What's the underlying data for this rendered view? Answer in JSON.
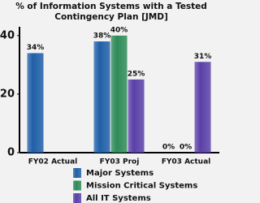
{
  "chart_data": {
    "type": "bar",
    "title": "% of Information Systems with a Tested Contingency Plan [JMD]",
    "categories": [
      "FY02 Actual",
      "FY03 Proj",
      "FY03 Actual"
    ],
    "series": [
      {
        "name": "Major Systems",
        "color": "#1f5fa8",
        "values": [
          34,
          38,
          0
        ],
        "value_labels": [
          "34%",
          "38%",
          "0%"
        ]
      },
      {
        "name": "Mission Critical Systems",
        "color": "#2e8b57",
        "values": [
          null,
          40,
          0
        ],
        "value_labels": [
          null,
          "40%",
          "0%"
        ]
      },
      {
        "name": "All IT Systems",
        "color": "#5a3fa8",
        "values": [
          null,
          25,
          31
        ],
        "value_labels": [
          null,
          "25%",
          "31%"
        ]
      }
    ],
    "ylim": [
      0,
      43
    ],
    "yticks": [
      0,
      20,
      40
    ],
    "grid": false,
    "legend": "bottom"
  }
}
